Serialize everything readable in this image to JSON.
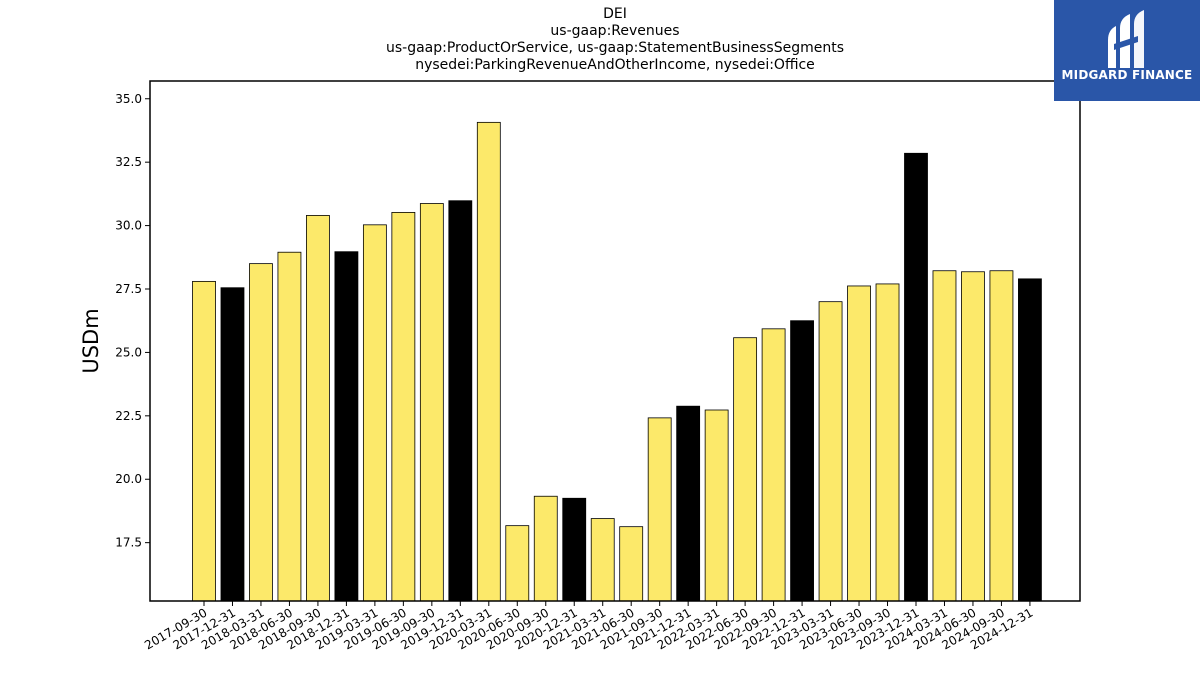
{
  "header": {
    "title_lines": [
      "DEI",
      "us-gaap:Revenues",
      "us-gaap:ProductOrService, us-gaap:StatementBusinessSegments",
      "nysedei:ParkingRevenueAndOtherIncome, nysedei:Office"
    ]
  },
  "logo": {
    "text": "MIDGARD FINANCE",
    "icon": "midgard-mark-icon",
    "bg_color": "#2a56a8"
  },
  "chart_data": {
    "type": "bar",
    "title": "DEI",
    "ylabel": "USDm",
    "xlabel": "",
    "ylim": [
      15.2,
      35.7
    ],
    "yticks": [
      17.5,
      20.0,
      22.5,
      25.0,
      27.5,
      30.0,
      32.5,
      35.0
    ],
    "grid": false,
    "colors": {
      "quarter": "#fce96a",
      "year_end": "#000000"
    },
    "categories": [
      "2017-09-30",
      "2017-12-31",
      "2018-03-31",
      "2018-06-30",
      "2018-09-30",
      "2018-12-31",
      "2019-03-31",
      "2019-06-30",
      "2019-09-30",
      "2019-12-31",
      "2020-03-31",
      "2020-06-30",
      "2020-09-30",
      "2020-12-31",
      "2021-03-31",
      "2021-06-30",
      "2021-09-30",
      "2021-12-31",
      "2022-03-31",
      "2022-06-30",
      "2022-09-30",
      "2022-12-31",
      "2023-03-31",
      "2023-06-30",
      "2023-09-30",
      "2023-12-31",
      "2024-03-31",
      "2024-06-30",
      "2024-09-30",
      "2024-12-31"
    ],
    "values": [
      27.8,
      27.55,
      28.5,
      28.95,
      30.4,
      28.97,
      30.03,
      30.52,
      30.87,
      30.98,
      34.07,
      18.17,
      19.33,
      19.25,
      18.45,
      18.13,
      22.42,
      22.88,
      22.73,
      25.58,
      25.93,
      26.25,
      27.0,
      27.62,
      27.7,
      32.85,
      28.22,
      28.18,
      28.22,
      27.9
    ]
  }
}
